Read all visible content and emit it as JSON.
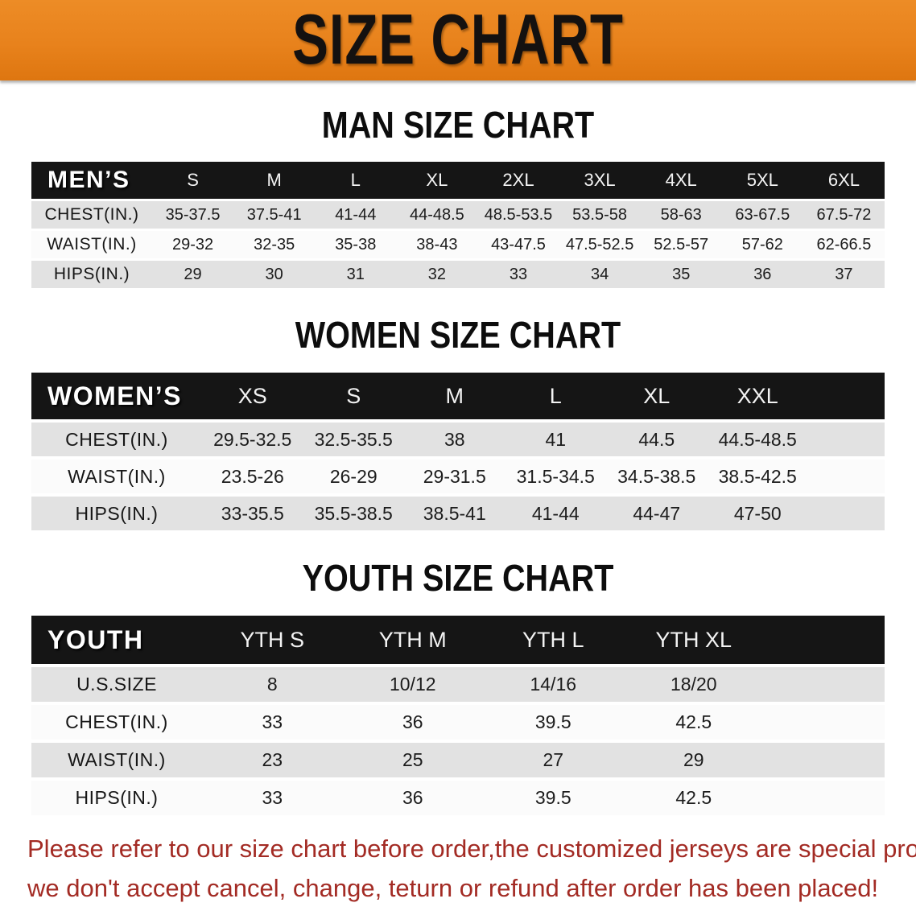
{
  "banner": {
    "title": "SIZE CHART"
  },
  "colors": {
    "banner_orange": "#E8821C",
    "header_black": "#151515",
    "row_gray": "#E2E2E2",
    "row_white": "#FBFBFB",
    "disclaimer_red": "#A32B24",
    "text_dark": "#1C1C1C"
  },
  "sections": [
    {
      "id": "men",
      "heading": "MAN SIZE CHART",
      "group_label": "MEN’S",
      "sizes": [
        "S",
        "M",
        "L",
        "XL",
        "2XL",
        "3XL",
        "4XL",
        "5XL",
        "6XL"
      ],
      "rows": [
        {
          "label": "CHEST(IN.)",
          "values": [
            "35-37.5",
            "37.5-41",
            "41-44",
            "44-48.5",
            "48.5-53.5",
            "53.5-58",
            "58-63",
            "63-67.5",
            "67.5-72"
          ]
        },
        {
          "label": "WAIST(IN.)",
          "values": [
            "29-32",
            "32-35",
            "35-38",
            "38-43",
            "43-47.5",
            "47.5-52.5",
            "52.5-57",
            "57-62",
            "62-66.5"
          ]
        },
        {
          "label": "HIPS(IN.)",
          "values": [
            "29",
            "30",
            "31",
            "32",
            "33",
            "34",
            "35",
            "36",
            "37"
          ]
        }
      ]
    },
    {
      "id": "women",
      "heading": "WOMEN SIZE CHART",
      "group_label": "WOMEN’S",
      "sizes": [
        "XS",
        "S",
        "M",
        "L",
        "XL",
        "XXL"
      ],
      "rows": [
        {
          "label": "CHEST(IN.)",
          "values": [
            "29.5-32.5",
            "32.5-35.5",
            "38",
            "41",
            "44.5",
            "44.5-48.5"
          ]
        },
        {
          "label": "WAIST(IN.)",
          "values": [
            "23.5-26",
            "26-29",
            "29-31.5",
            "31.5-34.5",
            "34.5-38.5",
            "38.5-42.5"
          ]
        },
        {
          "label": "HIPS(IN.)",
          "values": [
            "33-35.5",
            "35.5-38.5",
            "38.5-41",
            "41-44",
            "44-47",
            "47-50"
          ]
        }
      ]
    },
    {
      "id": "youth",
      "heading": "YOUTH SIZE CHART",
      "group_label": "YOUTH",
      "sizes": [
        "YTH S",
        "YTH M",
        "YTH L",
        "YTH XL"
      ],
      "rows": [
        {
          "label": "U.S.SIZE",
          "values": [
            "8",
            "10/12",
            "14/16",
            "18/20"
          ]
        },
        {
          "label": "CHEST(IN.)",
          "values": [
            "33",
            "36",
            "39.5",
            "42.5"
          ]
        },
        {
          "label": "WAIST(IN.)",
          "values": [
            "23",
            "25",
            "27",
            "29"
          ]
        },
        {
          "label": "HIPS(IN.)",
          "values": [
            "33",
            "36",
            "39.5",
            "42.5"
          ]
        }
      ]
    }
  ],
  "disclaimer": {
    "line1": "Please refer to our size chart before order,the customized jerseys are special products,",
    "line2": "we don't accept cancel, change, teturn or refund after order has been placed!"
  }
}
